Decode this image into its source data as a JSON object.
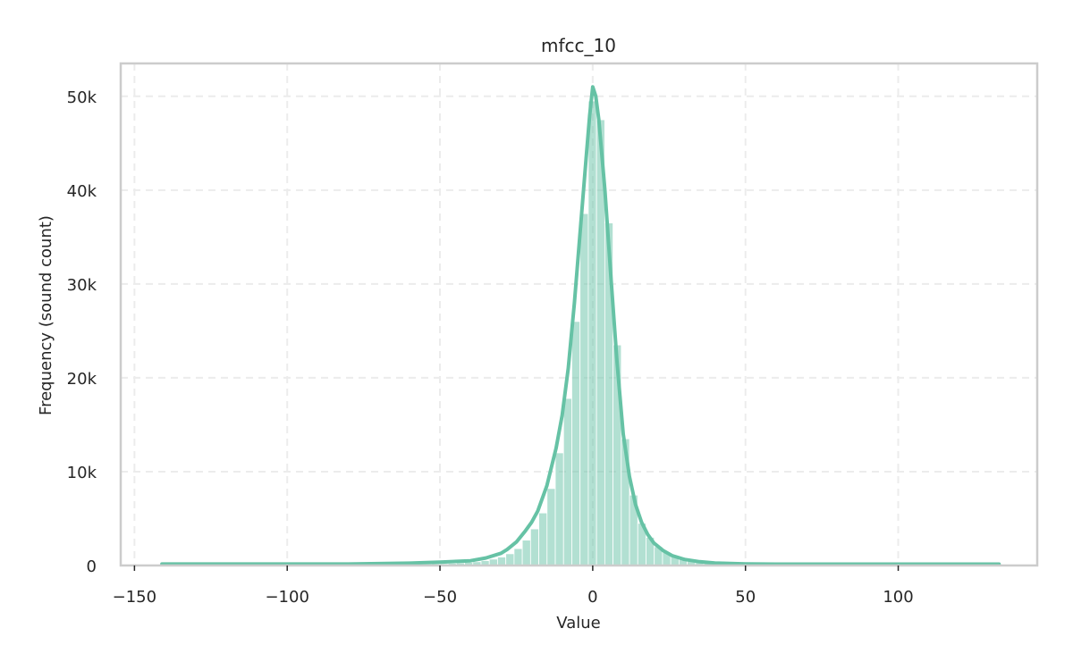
{
  "chart_data": {
    "type": "histogram",
    "title": "mfcc_10",
    "xlabel": "Value",
    "ylabel": "Frequency (sound count)",
    "xlim": [
      -154.5,
      145.5
    ],
    "ylim": [
      0,
      53500
    ],
    "xticks": [
      -150,
      -100,
      -50,
      0,
      50,
      100
    ],
    "xtick_labels": [
      "−150",
      "−100",
      "−50",
      "0",
      "50",
      "100"
    ],
    "yticks": [
      0,
      10000,
      20000,
      30000,
      40000,
      50000
    ],
    "ytick_labels": [
      "0",
      "10k",
      "20k",
      "30k",
      "40k",
      "50k"
    ],
    "grid": true,
    "bin_width": 2.7,
    "bins": [
      {
        "x": -140.5,
        "value": 8
      },
      {
        "x": -137.8,
        "value": 8
      },
      {
        "x": -135.1,
        "value": 9
      },
      {
        "x": -132.4,
        "value": 9
      },
      {
        "x": -129.7,
        "value": 10
      },
      {
        "x": -127.0,
        "value": 10
      },
      {
        "x": -124.3,
        "value": 11
      },
      {
        "x": -121.6,
        "value": 11
      },
      {
        "x": -118.9,
        "value": 12
      },
      {
        "x": -116.2,
        "value": 13
      },
      {
        "x": -113.5,
        "value": 14
      },
      {
        "x": -110.8,
        "value": 15
      },
      {
        "x": -108.1,
        "value": 16
      },
      {
        "x": -105.4,
        "value": 17
      },
      {
        "x": -102.7,
        "value": 18
      },
      {
        "x": -100.0,
        "value": 20
      },
      {
        "x": -97.3,
        "value": 22
      },
      {
        "x": -94.6,
        "value": 24
      },
      {
        "x": -91.9,
        "value": 26
      },
      {
        "x": -89.2,
        "value": 29
      },
      {
        "x": -86.5,
        "value": 32
      },
      {
        "x": -83.8,
        "value": 35
      },
      {
        "x": -81.1,
        "value": 39
      },
      {
        "x": -78.4,
        "value": 44
      },
      {
        "x": -75.7,
        "value": 49
      },
      {
        "x": -73.0,
        "value": 55
      },
      {
        "x": -70.3,
        "value": 62
      },
      {
        "x": -67.6,
        "value": 70
      },
      {
        "x": -64.9,
        "value": 80
      },
      {
        "x": -62.2,
        "value": 92
      },
      {
        "x": -59.5,
        "value": 106
      },
      {
        "x": -56.8,
        "value": 122
      },
      {
        "x": -54.1,
        "value": 142
      },
      {
        "x": -51.4,
        "value": 166
      },
      {
        "x": -48.7,
        "value": 195
      },
      {
        "x": -46.0,
        "value": 230
      },
      {
        "x": -43.3,
        "value": 275
      },
      {
        "x": -40.6,
        "value": 330
      },
      {
        "x": -37.9,
        "value": 400
      },
      {
        "x": -35.2,
        "value": 520
      },
      {
        "x": -32.5,
        "value": 680
      },
      {
        "x": -29.8,
        "value": 900
      },
      {
        "x": -27.1,
        "value": 1250
      },
      {
        "x": -24.4,
        "value": 1800
      },
      {
        "x": -21.7,
        "value": 2700
      },
      {
        "x": -19.0,
        "value": 3900
      },
      {
        "x": -16.3,
        "value": 5600
      },
      {
        "x": -13.6,
        "value": 8200
      },
      {
        "x": -10.9,
        "value": 12000
      },
      {
        "x": -8.2,
        "value": 17800
      },
      {
        "x": -5.5,
        "value": 26000
      },
      {
        "x": -2.8,
        "value": 37500
      },
      {
        "x": -0.1,
        "value": 49500
      },
      {
        "x": 2.6,
        "value": 47500
      },
      {
        "x": 5.3,
        "value": 36500
      },
      {
        "x": 8.0,
        "value": 23500
      },
      {
        "x": 10.7,
        "value": 13500
      },
      {
        "x": 13.4,
        "value": 7500
      },
      {
        "x": 16.1,
        "value": 4500
      },
      {
        "x": 18.8,
        "value": 3000
      },
      {
        "x": 21.5,
        "value": 2000
      },
      {
        "x": 24.2,
        "value": 1400
      },
      {
        "x": 26.9,
        "value": 950
      },
      {
        "x": 29.6,
        "value": 650
      },
      {
        "x": 32.3,
        "value": 450
      },
      {
        "x": 35.0,
        "value": 330
      },
      {
        "x": 37.7,
        "value": 260
      },
      {
        "x": 40.4,
        "value": 210
      },
      {
        "x": 43.1,
        "value": 175
      },
      {
        "x": 45.8,
        "value": 150
      },
      {
        "x": 48.5,
        "value": 130
      },
      {
        "x": 51.2,
        "value": 112
      },
      {
        "x": 53.9,
        "value": 98
      },
      {
        "x": 56.6,
        "value": 86
      },
      {
        "x": 59.3,
        "value": 76
      },
      {
        "x": 62.0,
        "value": 67
      },
      {
        "x": 64.7,
        "value": 60
      },
      {
        "x": 67.4,
        "value": 54
      },
      {
        "x": 70.1,
        "value": 48
      },
      {
        "x": 72.8,
        "value": 43
      },
      {
        "x": 75.5,
        "value": 39
      },
      {
        "x": 78.2,
        "value": 35
      },
      {
        "x": 80.9,
        "value": 32
      },
      {
        "x": 83.6,
        "value": 29
      },
      {
        "x": 86.3,
        "value": 26
      },
      {
        "x": 89.0,
        "value": 24
      },
      {
        "x": 91.7,
        "value": 22
      },
      {
        "x": 94.4,
        "value": 20
      },
      {
        "x": 97.1,
        "value": 18
      },
      {
        "x": 99.8,
        "value": 17
      },
      {
        "x": 102.5,
        "value": 15
      },
      {
        "x": 105.2,
        "value": 14
      },
      {
        "x": 107.9,
        "value": 13
      },
      {
        "x": 110.6,
        "value": 12
      },
      {
        "x": 113.3,
        "value": 11
      },
      {
        "x": 116.0,
        "value": 10
      },
      {
        "x": 118.7,
        "value": 10
      },
      {
        "x": 121.4,
        "value": 9
      },
      {
        "x": 124.1,
        "value": 9
      },
      {
        "x": 126.8,
        "value": 8
      },
      {
        "x": 129.5,
        "value": 8
      },
      {
        "x": 132.2,
        "value": 7
      }
    ],
    "kde": [
      {
        "x": -141,
        "y": 150
      },
      {
        "x": -120,
        "y": 150
      },
      {
        "x": -100,
        "y": 150
      },
      {
        "x": -80,
        "y": 150
      },
      {
        "x": -60,
        "y": 250
      },
      {
        "x": -50,
        "y": 350
      },
      {
        "x": -40,
        "y": 500
      },
      {
        "x": -35,
        "y": 800
      },
      {
        "x": -30,
        "y": 1300
      },
      {
        "x": -28,
        "y": 1700
      },
      {
        "x": -25,
        "y": 2500
      },
      {
        "x": -22,
        "y": 3700
      },
      {
        "x": -20,
        "y": 4600
      },
      {
        "x": -18,
        "y": 5800
      },
      {
        "x": -15,
        "y": 8500
      },
      {
        "x": -12,
        "y": 12500
      },
      {
        "x": -10,
        "y": 16000
      },
      {
        "x": -8,
        "y": 21000
      },
      {
        "x": -6,
        "y": 28000
      },
      {
        "x": -4,
        "y": 36000
      },
      {
        "x": -2,
        "y": 44000
      },
      {
        "x": -1,
        "y": 48000
      },
      {
        "x": 0,
        "y": 51000
      },
      {
        "x": 1,
        "y": 50000
      },
      {
        "x": 2,
        "y": 47500
      },
      {
        "x": 4,
        "y": 40000
      },
      {
        "x": 6,
        "y": 30500
      },
      {
        "x": 8,
        "y": 21500
      },
      {
        "x": 10,
        "y": 14000
      },
      {
        "x": 12,
        "y": 9500
      },
      {
        "x": 14,
        "y": 6500
      },
      {
        "x": 16,
        "y": 4600
      },
      {
        "x": 18,
        "y": 3300
      },
      {
        "x": 20,
        "y": 2400
      },
      {
        "x": 23,
        "y": 1600
      },
      {
        "x": 26,
        "y": 1050
      },
      {
        "x": 30,
        "y": 650
      },
      {
        "x": 35,
        "y": 400
      },
      {
        "x": 40,
        "y": 260
      },
      {
        "x": 50,
        "y": 170
      },
      {
        "x": 60,
        "y": 140
      },
      {
        "x": 80,
        "y": 140
      },
      {
        "x": 100,
        "y": 140
      },
      {
        "x": 120,
        "y": 140
      },
      {
        "x": 133,
        "y": 140
      }
    ]
  },
  "colors": {
    "bar_fill": "#66c2a5",
    "line": "#66c2a5",
    "frame": "#cccccc",
    "grid": "#ececec"
  }
}
